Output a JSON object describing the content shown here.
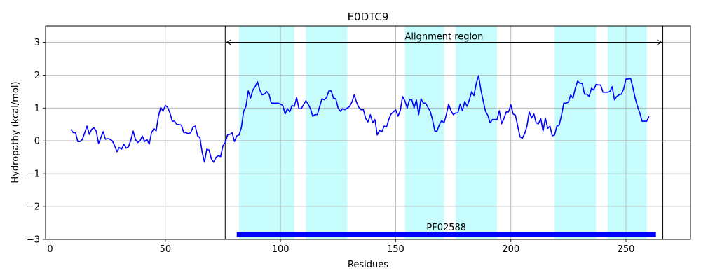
{
  "chart_data": {
    "type": "line",
    "title": "E0DTC9",
    "xlabel": "Residues",
    "ylabel": "Hydropathy (kcal/mol)",
    "xlim": [
      -2,
      278
    ],
    "ylim": [
      -3,
      3.5
    ],
    "xticks": [
      0,
      50,
      100,
      150,
      200,
      250
    ],
    "yticks": [
      -3,
      -2,
      -1,
      0,
      1,
      2,
      3
    ],
    "xtick_labels": [
      "0",
      "50",
      "100",
      "150",
      "200",
      "250"
    ],
    "ytick_labels": [
      "−3",
      "−2",
      "−1",
      "0",
      "1",
      "2",
      "3"
    ],
    "grid": true,
    "series": [
      {
        "color": "#0000ff",
        "points": [
          [
            9,
            0.35
          ],
          [
            10,
            0.25
          ],
          [
            11,
            0.25
          ],
          [
            12,
            -0.02
          ],
          [
            13,
            -0.02
          ],
          [
            14,
            0.05
          ],
          [
            15,
            0.25
          ],
          [
            16,
            0.45
          ],
          [
            17,
            0.2
          ],
          [
            18,
            0.35
          ],
          [
            19,
            0.4
          ],
          [
            20,
            0.3
          ],
          [
            21,
            -0.08
          ],
          [
            22,
            0.1
          ],
          [
            23,
            0.28
          ],
          [
            24,
            0.05
          ],
          [
            25,
            0.07
          ],
          [
            26,
            0.05
          ],
          [
            27,
            0.0
          ],
          [
            28,
            -0.15
          ],
          [
            29,
            -0.33
          ],
          [
            30,
            -0.2
          ],
          [
            31,
            -0.25
          ],
          [
            32,
            -0.1
          ],
          [
            33,
            -0.22
          ],
          [
            34,
            -0.18
          ],
          [
            35,
            0.02
          ],
          [
            36,
            0.3
          ],
          [
            37,
            0.05
          ],
          [
            38,
            -0.05
          ],
          [
            39,
            0.0
          ],
          [
            40,
            0.15
          ],
          [
            41,
            -0.02
          ],
          [
            42,
            0.05
          ],
          [
            43,
            -0.1
          ],
          [
            44,
            0.25
          ],
          [
            45,
            0.38
          ],
          [
            46,
            0.3
          ],
          [
            47,
            0.75
          ],
          [
            48,
            1.02
          ],
          [
            49,
            0.9
          ],
          [
            50,
            1.08
          ],
          [
            51,
            1.02
          ],
          [
            52,
            0.85
          ],
          [
            53,
            0.6
          ],
          [
            54,
            0.6
          ],
          [
            55,
            0.5
          ],
          [
            56,
            0.5
          ],
          [
            57,
            0.48
          ],
          [
            58,
            0.25
          ],
          [
            59,
            0.25
          ],
          [
            60,
            0.22
          ],
          [
            61,
            0.25
          ],
          [
            62,
            0.42
          ],
          [
            63,
            0.45
          ],
          [
            64,
            0.15
          ],
          [
            65,
            0.1
          ],
          [
            66,
            -0.35
          ],
          [
            67,
            -0.65
          ],
          [
            68,
            -0.25
          ],
          [
            69,
            -0.28
          ],
          [
            70,
            -0.55
          ],
          [
            71,
            -0.65
          ],
          [
            72,
            -0.5
          ],
          [
            73,
            -0.45
          ],
          [
            74,
            -0.48
          ],
          [
            75,
            -0.15
          ],
          [
            76,
            -0.05
          ],
          [
            77,
            0.18
          ],
          [
            78,
            0.2
          ],
          [
            79,
            0.25
          ],
          [
            80,
            -0.02
          ],
          [
            81,
            0.15
          ],
          [
            82,
            0.18
          ],
          [
            83,
            0.4
          ],
          [
            84,
            0.9
          ],
          [
            85,
            1.05
          ],
          [
            86,
            1.52
          ],
          [
            87,
            1.3
          ],
          [
            88,
            1.55
          ],
          [
            89,
            1.65
          ],
          [
            90,
            1.8
          ],
          [
            91,
            1.55
          ],
          [
            92,
            1.4
          ],
          [
            93,
            1.42
          ],
          [
            94,
            1.5
          ],
          [
            95,
            1.42
          ],
          [
            96,
            1.15
          ],
          [
            97,
            1.15
          ],
          [
            98,
            1.15
          ],
          [
            99,
            1.15
          ],
          [
            100,
            1.12
          ],
          [
            101,
            1.08
          ],
          [
            102,
            0.82
          ],
          [
            103,
            0.98
          ],
          [
            104,
            0.88
          ],
          [
            105,
            1.08
          ],
          [
            106,
            1.05
          ],
          [
            107,
            1.32
          ],
          [
            108,
            0.98
          ],
          [
            109,
            0.98
          ],
          [
            110,
            1.1
          ],
          [
            111,
            1.22
          ],
          [
            112,
            1.12
          ],
          [
            113,
            0.98
          ],
          [
            114,
            0.75
          ],
          [
            115,
            0.8
          ],
          [
            116,
            0.8
          ],
          [
            117,
            1.05
          ],
          [
            118,
            1.28
          ],
          [
            119,
            1.25
          ],
          [
            120,
            1.32
          ],
          [
            121,
            1.52
          ],
          [
            122,
            1.52
          ],
          [
            123,
            1.3
          ],
          [
            124,
            1.28
          ],
          [
            125,
            1.0
          ],
          [
            126,
            0.9
          ],
          [
            127,
            0.98
          ],
          [
            128,
            0.95
          ],
          [
            129,
            1.0
          ],
          [
            130,
            1.05
          ],
          [
            131,
            1.18
          ],
          [
            132,
            1.4
          ],
          [
            133,
            1.18
          ],
          [
            134,
            1.02
          ],
          [
            135,
            0.95
          ],
          [
            136,
            0.95
          ],
          [
            137,
            0.68
          ],
          [
            138,
            0.58
          ],
          [
            139,
            0.8
          ],
          [
            140,
            0.55
          ],
          [
            141,
            0.65
          ],
          [
            142,
            0.18
          ],
          [
            143,
            0.32
          ],
          [
            144,
            0.28
          ],
          [
            145,
            0.45
          ],
          [
            146,
            0.42
          ],
          [
            147,
            0.65
          ],
          [
            148,
            0.82
          ],
          [
            149,
            0.88
          ],
          [
            150,
            0.95
          ],
          [
            151,
            0.75
          ],
          [
            152,
            0.92
          ],
          [
            153,
            1.35
          ],
          [
            154,
            1.22
          ],
          [
            155,
            1.0
          ],
          [
            156,
            1.25
          ],
          [
            157,
            1.25
          ],
          [
            158,
            1.0
          ],
          [
            159,
            1.25
          ],
          [
            160,
            0.8
          ],
          [
            161,
            1.28
          ],
          [
            162,
            1.15
          ],
          [
            163,
            1.15
          ],
          [
            164,
            1.02
          ],
          [
            165,
            0.9
          ],
          [
            166,
            0.65
          ],
          [
            167,
            0.3
          ],
          [
            168,
            0.3
          ],
          [
            169,
            0.5
          ],
          [
            170,
            0.62
          ],
          [
            171,
            0.55
          ],
          [
            172,
            0.8
          ],
          [
            173,
            1.12
          ],
          [
            174,
            0.92
          ],
          [
            175,
            0.8
          ],
          [
            176,
            0.85
          ],
          [
            177,
            0.85
          ],
          [
            178,
            1.12
          ],
          [
            179,
            0.92
          ],
          [
            180,
            1.2
          ],
          [
            181,
            1.05
          ],
          [
            182,
            1.25
          ],
          [
            183,
            1.5
          ],
          [
            184,
            1.38
          ],
          [
            185,
            1.75
          ],
          [
            186,
            1.98
          ],
          [
            187,
            1.55
          ],
          [
            188,
            1.22
          ],
          [
            189,
            0.9
          ],
          [
            190,
            0.78
          ],
          [
            191,
            0.55
          ],
          [
            192,
            0.65
          ],
          [
            193,
            0.65
          ],
          [
            194,
            0.65
          ],
          [
            195,
            0.92
          ],
          [
            196,
            0.52
          ],
          [
            197,
            0.68
          ],
          [
            198,
            0.88
          ],
          [
            199,
            0.88
          ],
          [
            200,
            1.1
          ],
          [
            201,
            0.82
          ],
          [
            202,
            0.78
          ],
          [
            203,
            0.45
          ],
          [
            204,
            0.12
          ],
          [
            205,
            0.08
          ],
          [
            206,
            0.22
          ],
          [
            207,
            0.45
          ],
          [
            208,
            0.88
          ],
          [
            209,
            0.7
          ],
          [
            210,
            0.82
          ],
          [
            211,
            0.55
          ],
          [
            212,
            0.52
          ],
          [
            213,
            0.68
          ],
          [
            214,
            0.3
          ],
          [
            215,
            0.7
          ],
          [
            216,
            0.38
          ],
          [
            217,
            0.45
          ],
          [
            218,
            0.15
          ],
          [
            219,
            0.18
          ],
          [
            220,
            0.45
          ],
          [
            221,
            0.48
          ],
          [
            222,
            0.78
          ],
          [
            223,
            1.15
          ],
          [
            224,
            1.15
          ],
          [
            225,
            1.18
          ],
          [
            226,
            1.4
          ],
          [
            227,
            1.3
          ],
          [
            228,
            1.6
          ],
          [
            229,
            1.82
          ],
          [
            230,
            1.75
          ],
          [
            231,
            1.75
          ],
          [
            232,
            1.42
          ],
          [
            233,
            1.42
          ],
          [
            234,
            1.35
          ],
          [
            235,
            1.6
          ],
          [
            236,
            1.55
          ],
          [
            237,
            1.72
          ],
          [
            238,
            1.7
          ],
          [
            239,
            1.7
          ],
          [
            240,
            1.48
          ],
          [
            241,
            1.48
          ],
          [
            242,
            1.48
          ],
          [
            243,
            1.5
          ],
          [
            244,
            1.65
          ],
          [
            245,
            1.25
          ],
          [
            246,
            1.35
          ],
          [
            247,
            1.4
          ],
          [
            248,
            1.42
          ],
          [
            249,
            1.58
          ],
          [
            250,
            1.88
          ],
          [
            251,
            1.88
          ],
          [
            252,
            1.9
          ],
          [
            253,
            1.62
          ],
          [
            254,
            1.3
          ],
          [
            255,
            1.05
          ],
          [
            256,
            0.85
          ],
          [
            257,
            0.6
          ],
          [
            258,
            0.6
          ],
          [
            259,
            0.6
          ],
          [
            260,
            0.75
          ]
        ]
      }
    ],
    "highlight_regions": [
      [
        82,
        106
      ],
      [
        111,
        129
      ],
      [
        154,
        171
      ],
      [
        176,
        194
      ],
      [
        219,
        237
      ],
      [
        242,
        259
      ]
    ],
    "highlight_color": "#c6fcfc",
    "alignment_region": {
      "label": "Alignment region",
      "start": 76,
      "end": 266,
      "y": 3.0
    },
    "domain_bar": {
      "label": "PF02588",
      "start": 81,
      "end": 263,
      "y": -2.85,
      "color": "#0000ff"
    },
    "zero_line": true
  }
}
